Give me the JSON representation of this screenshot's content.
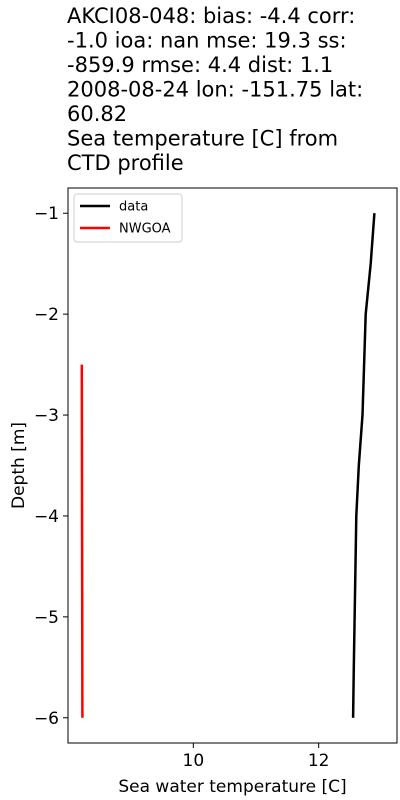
{
  "chart_data": {
    "type": "line",
    "title_lines": [
      "AKCI08-048: bias: -4.4  corr:",
      "-1.0  ioa: nan  mse: 19.3  ss:",
      "-859.9  rmse: 4.4  dist: 1.1",
      "2008-08-24 lon: -151.75 lat:",
      "60.82",
      "Sea temperature [C] from",
      "CTD profile"
    ],
    "xlabel": "Sea water temperature [C]",
    "ylabel": "Depth [m]",
    "xlim": [
      8.0,
      13.25
    ],
    "ylim": [
      -6.25,
      -0.75
    ],
    "xticks": [
      10,
      12
    ],
    "yticks": [
      -1,
      -2,
      -3,
      -4,
      -5,
      -6
    ],
    "legend_position": "upper-left",
    "series": [
      {
        "name": "data",
        "color": "#000000",
        "x": [
          12.89,
          12.83,
          12.75,
          12.7,
          12.64,
          12.6,
          12.56,
          12.55
        ],
        "y": [
          -1.0,
          -1.5,
          -2.0,
          -3.0,
          -3.5,
          -4.0,
          -5.5,
          -6.0
        ]
      },
      {
        "name": "NWGOA",
        "color": "#ff0000",
        "x": [
          8.22,
          8.23
        ],
        "y": [
          -2.5,
          -6.0
        ]
      }
    ]
  }
}
